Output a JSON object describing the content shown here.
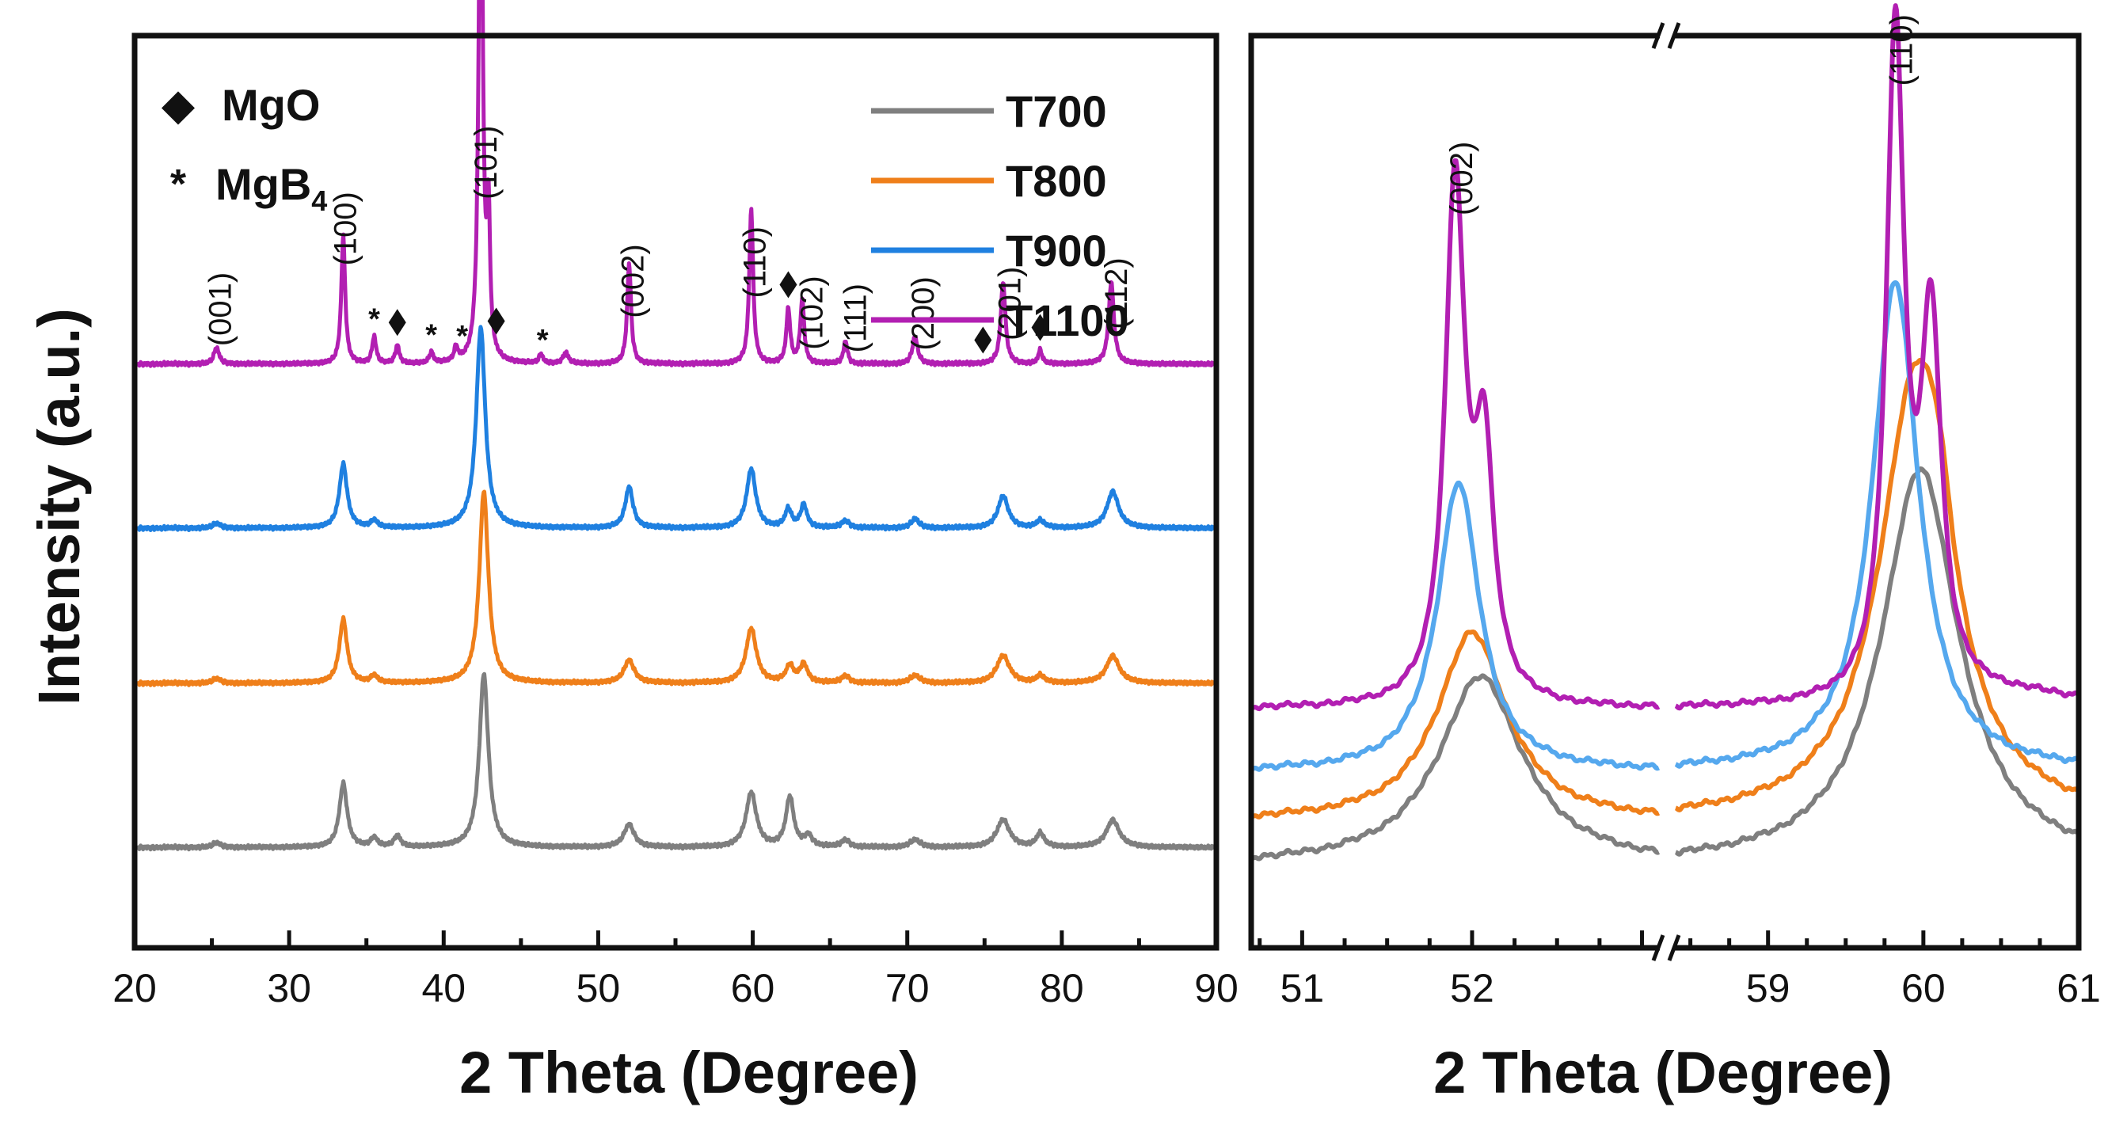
{
  "figure": {
    "ylabel": "Intensity (a.u.)",
    "xlabel_left": "2 Theta (Degree)",
    "xlabel_right": "2 Theta (Degree)",
    "phase_legend": [
      {
        "symbol": "◆",
        "label": "MgO"
      },
      {
        "symbol": "*",
        "label": "MgB",
        "subscript": "4"
      }
    ],
    "colors": {
      "T700": "#7f7f7f",
      "T800": "#ef7f1a",
      "T900": "#1f80e0",
      "T900_zoom": "#55a8ee",
      "T1100": "#b21fb2"
    }
  },
  "chart_data": [
    {
      "type": "line",
      "panel": "left",
      "xlabel": "2 Theta (Degree)",
      "ylabel": "Intensity (a.u.)",
      "xlim": [
        20,
        90
      ],
      "xticks": [
        20,
        30,
        40,
        50,
        60,
        70,
        80,
        90
      ],
      "ylim": [
        0,
        1
      ],
      "y_ticks_shown": false,
      "grid": false,
      "legend": "top-right",
      "series": [
        {
          "name": "T700",
          "color": "#7f7f7f",
          "baseline": 0.11,
          "peaks": [
            [
              25.3,
              0.005,
              0.3
            ],
            [
              33.5,
              0.07,
              0.3
            ],
            [
              35.5,
              0.01,
              0.25
            ],
            [
              37,
              0.012,
              0.25
            ],
            [
              42.6,
              0.19,
              0.35
            ],
            [
              52,
              0.025,
              0.4
            ],
            [
              59.9,
              0.06,
              0.4
            ],
            [
              62.4,
              0.055,
              0.3
            ],
            [
              63.6,
              0.012,
              0.3
            ],
            [
              66,
              0.008,
              0.3
            ],
            [
              70.5,
              0.008,
              0.4
            ],
            [
              76.2,
              0.03,
              0.5
            ],
            [
              78.6,
              0.015,
              0.3
            ],
            [
              83.3,
              0.03,
              0.5
            ]
          ]
        },
        {
          "name": "T800",
          "color": "#ef7f1a",
          "baseline": 0.29,
          "peaks": [
            [
              25.3,
              0.005,
              0.3
            ],
            [
              33.5,
              0.07,
              0.3
            ],
            [
              35.5,
              0.008,
              0.25
            ],
            [
              42.6,
              0.21,
              0.35
            ],
            [
              52,
              0.025,
              0.4
            ],
            [
              59.9,
              0.06,
              0.4
            ],
            [
              62.4,
              0.018,
              0.3
            ],
            [
              63.3,
              0.02,
              0.3
            ],
            [
              66,
              0.008,
              0.3
            ],
            [
              70.5,
              0.008,
              0.4
            ],
            [
              76.2,
              0.03,
              0.5
            ],
            [
              78.6,
              0.008,
              0.3
            ],
            [
              83.3,
              0.03,
              0.5
            ]
          ]
        },
        {
          "name": "T900",
          "color": "#1f80e0",
          "baseline": 0.46,
          "peaks": [
            [
              25.3,
              0.005,
              0.3
            ],
            [
              33.5,
              0.07,
              0.3
            ],
            [
              35.5,
              0.008,
              0.25
            ],
            [
              42.4,
              0.22,
              0.35
            ],
            [
              52,
              0.045,
              0.3
            ],
            [
              59.9,
              0.065,
              0.35
            ],
            [
              62.3,
              0.02,
              0.25
            ],
            [
              63.3,
              0.025,
              0.25
            ],
            [
              66,
              0.008,
              0.3
            ],
            [
              70.5,
              0.01,
              0.3
            ],
            [
              76.2,
              0.035,
              0.4
            ],
            [
              78.6,
              0.008,
              0.3
            ],
            [
              83.3,
              0.04,
              0.45
            ]
          ]
        },
        {
          "name": "T1100",
          "color": "#b21fb2",
          "baseline": 0.64,
          "peaks": [
            [
              25.3,
              0.018,
              0.2
            ],
            [
              33.5,
              0.14,
              0.15
            ],
            [
              35.5,
              0.03,
              0.15
            ],
            [
              37,
              0.02,
              0.15
            ],
            [
              39.2,
              0.012,
              0.15
            ],
            [
              40.8,
              0.015,
              0.15
            ],
            [
              42.4,
              0.65,
              0.15
            ],
            [
              42.9,
              0.15,
              0.12
            ],
            [
              46.3,
              0.01,
              0.15
            ],
            [
              47.9,
              0.012,
              0.2
            ],
            [
              52,
              0.11,
              0.15
            ],
            [
              59.9,
              0.17,
              0.15
            ],
            [
              62.3,
              0.06,
              0.15
            ],
            [
              63.2,
              0.07,
              0.15
            ],
            [
              66,
              0.025,
              0.15
            ],
            [
              70.5,
              0.03,
              0.2
            ],
            [
              76.2,
              0.09,
              0.18
            ],
            [
              78.6,
              0.015,
              0.15
            ],
            [
              83.2,
              0.09,
              0.2
            ]
          ]
        }
      ],
      "annotations": [
        {
          "text": "(001)",
          "x": 25.5
        },
        {
          "text": "(100)",
          "x": 33.6
        },
        {
          "text": "(101)",
          "x": 42.7
        },
        {
          "text": "(002)",
          "x": 52.2
        },
        {
          "text": "(110)",
          "x": 60.1
        },
        {
          "text": "(102)",
          "x": 63.8
        },
        {
          "text": "(111)",
          "x": 66.6
        },
        {
          "text": "(200)",
          "x": 71.0
        },
        {
          "text": "(201)",
          "x": 76.6
        },
        {
          "text": "(112)",
          "x": 83.5
        }
      ],
      "mgo_markers": [
        43.4,
        37.0,
        62.3,
        74.9,
        78.6
      ],
      "mgb4_markers": [
        35.5,
        39.2,
        41.2,
        46.4
      ]
    },
    {
      "type": "line",
      "panel": "right",
      "xlabel": "2 Theta (Degree)",
      "axis_break": true,
      "segments": [
        {
          "xlim": [
            50.7,
            53.1
          ]
        },
        {
          "xlim": [
            58.4,
            61
          ]
        }
      ],
      "xticks": [
        51,
        52,
        59,
        60,
        61
      ],
      "grid": false,
      "series": [
        {
          "name": "T700",
          "color": "#7f7f7f",
          "baseline": 0.13,
          "peaks": [
            [
              52.05,
              0.3,
              0.3
            ],
            [
              59.98,
              0.63,
              0.3
            ]
          ]
        },
        {
          "name": "T800",
          "color": "#ef7f1a",
          "baseline": 0.2,
          "peaks": [
            [
              52.0,
              0.3,
              0.25
            ],
            [
              59.95,
              0.7,
              0.28
            ],
            [
              60.1,
              0.1,
              0.1
            ]
          ]
        },
        {
          "name": "T900",
          "color": "#55a8ee",
          "baseline": 0.28,
          "peaks": [
            [
              51.92,
              0.46,
              0.15
            ],
            [
              59.82,
              0.78,
              0.18
            ]
          ]
        },
        {
          "name": "T1100",
          "color": "#b21fb2",
          "baseline": 0.38,
          "peaks": [
            [
              51.9,
              0.82,
              0.07
            ],
            [
              52.07,
              0.38,
              0.07
            ],
            [
              59.82,
              1.05,
              0.07
            ],
            [
              60.05,
              0.58,
              0.08
            ],
            [
              60.6,
              0.02,
              0.6
            ]
          ]
        }
      ],
      "annotations": [
        {
          "text": "(002)",
          "x": 51.93
        },
        {
          "text": "(110)",
          "x": 59.85
        }
      ]
    }
  ]
}
